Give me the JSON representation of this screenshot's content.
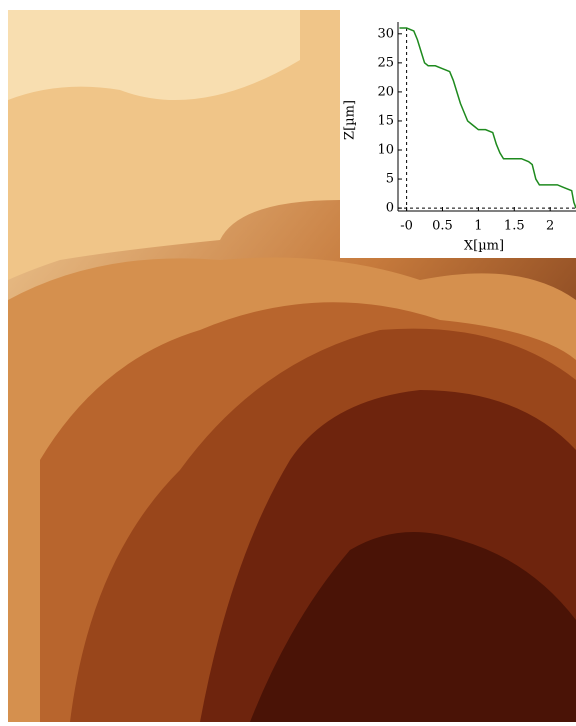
{
  "chart_data": {
    "type": "line",
    "xlabel": "X[µm]",
    "ylabel": "Z[µm]",
    "x": [
      -0.1,
      0,
      0.1,
      0.15,
      0.2,
      0.25,
      0.3,
      0.4,
      0.5,
      0.6,
      0.65,
      0.7,
      0.75,
      0.8,
      0.85,
      0.9,
      0.95,
      1.0,
      1.1,
      1.2,
      1.25,
      1.3,
      1.35,
      1.4,
      1.5,
      1.6,
      1.7,
      1.75,
      1.8,
      1.85,
      1.9,
      2.0,
      2.1,
      2.2,
      2.3,
      2.33,
      2.36
    ],
    "series": [
      {
        "color": "#1e8a1e",
        "values": [
          31,
          31,
          30.5,
          29,
          27,
          25,
          24.5,
          24.5,
          24,
          23.5,
          22,
          20,
          18,
          16.5,
          15,
          14.5,
          14,
          13.5,
          13.5,
          13,
          11,
          9.5,
          8.5,
          8.5,
          8.5,
          8.5,
          8,
          7.5,
          5,
          4,
          4,
          4,
          4,
          3.5,
          3,
          1,
          0
        ]
      }
    ],
    "xlim": [
      -0.12,
      2.36
    ],
    "ylim": [
      -0.5,
      31
    ],
    "xticks": [
      {
        "value": 0,
        "label": "-0"
      },
      0.5,
      1,
      1.5,
      2
    ],
    "yticks": [
      0,
      5,
      10,
      15,
      20,
      25,
      30
    ]
  }
}
